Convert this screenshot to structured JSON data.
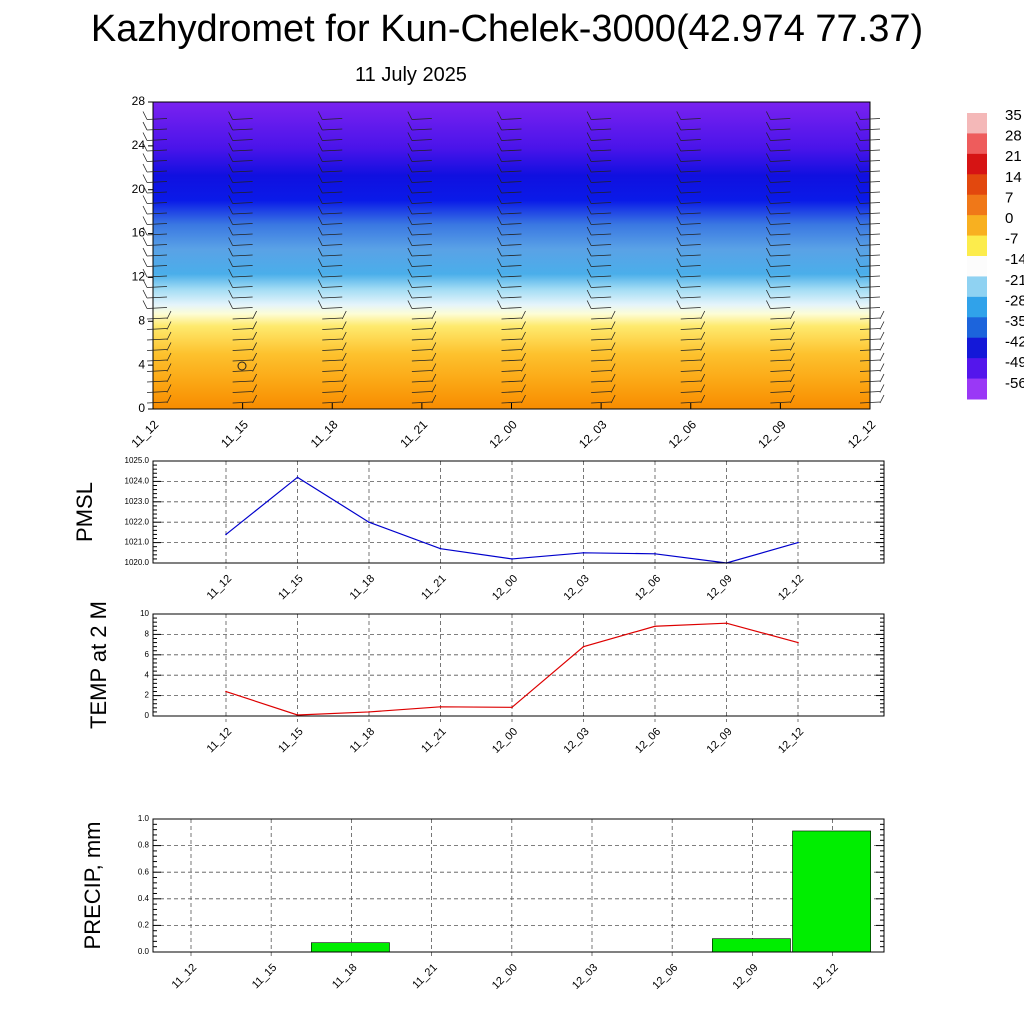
{
  "title": "Kazhydromet for Kun-Chelek-3000(42.974 77.37)",
  "subtitle": "11 July 2025",
  "colors": {
    "pmsl_line": "#0000cc",
    "temp_line": "#dd0000",
    "precip_bar": "#00ee00",
    "grid": "#555555"
  },
  "chart_data": [
    {
      "type": "heatmap",
      "title": "",
      "ylim": [
        0,
        28
      ],
      "y_ticks": [
        "0",
        "4",
        "8",
        "12",
        "16",
        "20",
        "24",
        "28"
      ],
      "x_ticks": [
        "11_12",
        "11_15",
        "11_18",
        "11_21",
        "12_00",
        "12_03",
        "12_06",
        "12_09",
        "12_12"
      ],
      "colorbar_labels": [
        "35",
        "28",
        "21",
        "14",
        "7",
        "0",
        "-7",
        "-14",
        "-21",
        "-28",
        "-35",
        "-42",
        "-49",
        "-56"
      ],
      "colorbar_colors": [
        "#f4b8b8",
        "#ee5c5c",
        "#d61414",
        "#e2480e",
        "#f07818",
        "#f8b020",
        "#fcec4c",
        "#fcfcfc",
        "#8fd2f2",
        "#30a2ea",
        "#1c64dc",
        "#1418d8",
        "#5416ec",
        "#9a38f6"
      ],
      "notes": "temperature contours with wind barbs"
    },
    {
      "type": "line",
      "ylabel": "PMSL",
      "categories": [
        "11_12",
        "11_15",
        "11_18",
        "11_21",
        "12_00",
        "12_03",
        "12_06",
        "12_09",
        "12_12"
      ],
      "y_ticks": [
        "1020.0",
        "1021.0",
        "1022.0",
        "1023.0",
        "1024.0",
        "1025.0"
      ],
      "ylim": [
        1020,
        1025
      ],
      "grid": true,
      "series": [
        {
          "values": [
            1021.4,
            1024.2,
            1022.0,
            1020.7,
            1020.2,
            1020.5,
            1020.45,
            1020.0,
            1021.0
          ]
        }
      ]
    },
    {
      "type": "line",
      "ylabel": "TEMP at 2 M",
      "categories": [
        "11_12",
        "11_15",
        "11_18",
        "11_21",
        "12_00",
        "12_03",
        "12_06",
        "12_09",
        "12_12"
      ],
      "y_ticks": [
        "0",
        "2",
        "4",
        "6",
        "8",
        "10"
      ],
      "ylim": [
        0,
        10
      ],
      "grid": true,
      "series": [
        {
          "values": [
            2.4,
            0.1,
            0.4,
            0.9,
            0.85,
            6.8,
            8.8,
            9.1,
            7.2
          ]
        }
      ]
    },
    {
      "type": "bar",
      "ylabel": "PRECIP, mm",
      "categories": [
        "11_12",
        "11_15",
        "11_18",
        "11_21",
        "12_00",
        "12_03",
        "12_06",
        "12_09",
        "12_12"
      ],
      "y_ticks": [
        "0.0",
        "0.2",
        "0.4",
        "0.6",
        "0.8",
        "1.0"
      ],
      "ylim": [
        0,
        1.0
      ],
      "grid": true,
      "values": [
        0,
        0,
        0.07,
        0,
        0,
        0,
        0,
        0.1,
        0.91
      ]
    }
  ]
}
